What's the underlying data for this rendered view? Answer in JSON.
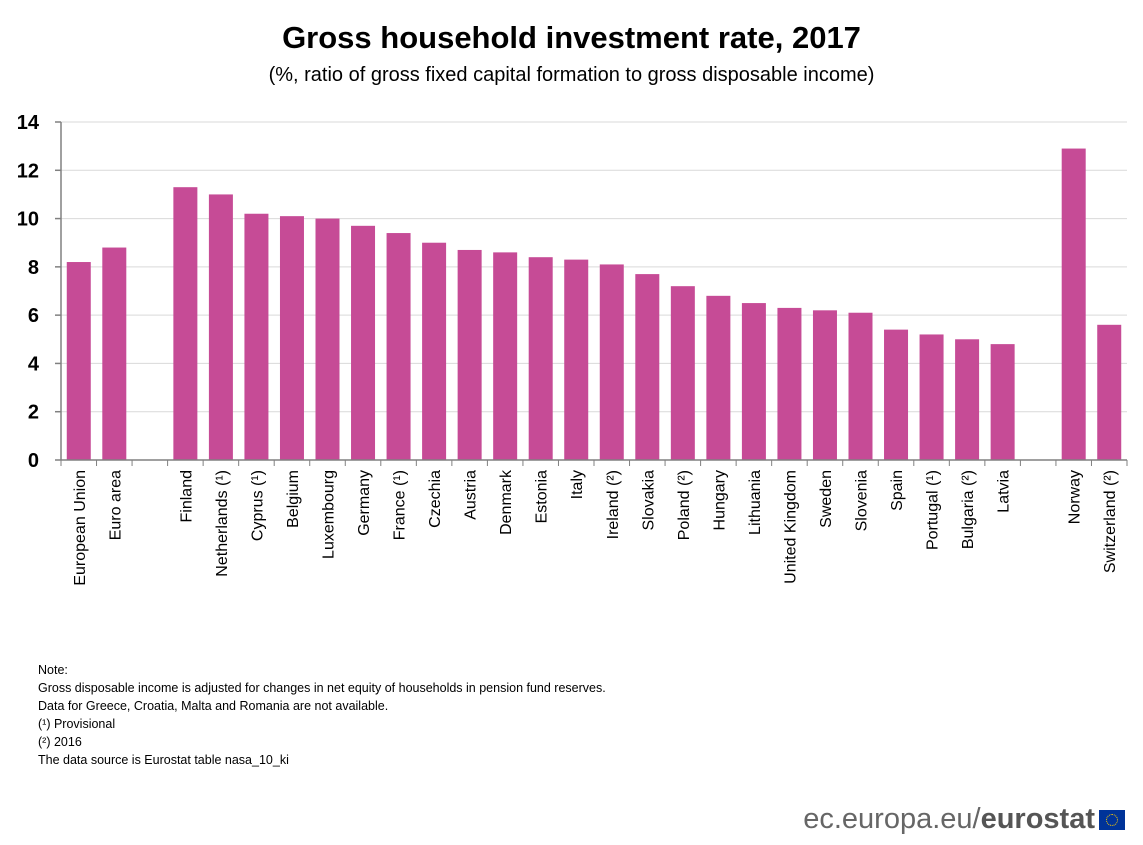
{
  "chart_data": {
    "type": "bar",
    "title": "Gross household investment rate, 2017",
    "subtitle": "(%, ratio of gross fixed capital formation to gross disposable income)",
    "categories": [
      "European Union",
      "Euro area",
      "",
      "Finland",
      "Netherlands (¹)",
      "Cyprus (¹)",
      "Belgium",
      "Luxembourg",
      "Germany",
      "France (¹)",
      "Czechia",
      "Austria",
      "Denmark",
      "Estonia",
      "Italy",
      "Ireland (²)",
      "Slovakia",
      "Poland (²)",
      "Hungary",
      "Lithuania",
      "United Kingdom",
      "Sweden",
      "Slovenia",
      "Spain",
      "Portugal (¹)",
      "Bulgaria (²)",
      "Latvia",
      "",
      "Norway",
      "Switzerland (²)"
    ],
    "values": [
      8.2,
      8.8,
      null,
      11.3,
      11.0,
      10.2,
      10.1,
      10.0,
      9.7,
      9.4,
      9.0,
      8.7,
      8.6,
      8.4,
      8.3,
      8.1,
      7.7,
      7.2,
      6.8,
      6.5,
      6.3,
      6.2,
      6.1,
      5.4,
      5.2,
      5.0,
      4.8,
      null,
      12.9,
      5.6
    ],
    "ylim": [
      0,
      14
    ],
    "yticks": [
      0,
      2,
      4,
      6,
      8,
      10,
      12,
      14
    ],
    "grid": true,
    "bar_color": "#C64B96"
  },
  "notes": [
    "Note:",
    "Gross disposable income is adjusted for changes in net equity of households in pension fund reserves.",
    "Data for Greece, Croatia, Malta and Romania are not available.",
    "(¹) Provisional",
    "(²) 2016",
    "The data source is Eurostat table nasa_10_ki"
  ],
  "logo": {
    "prefix": "ec.europa.eu/",
    "brand": "eurostat"
  }
}
